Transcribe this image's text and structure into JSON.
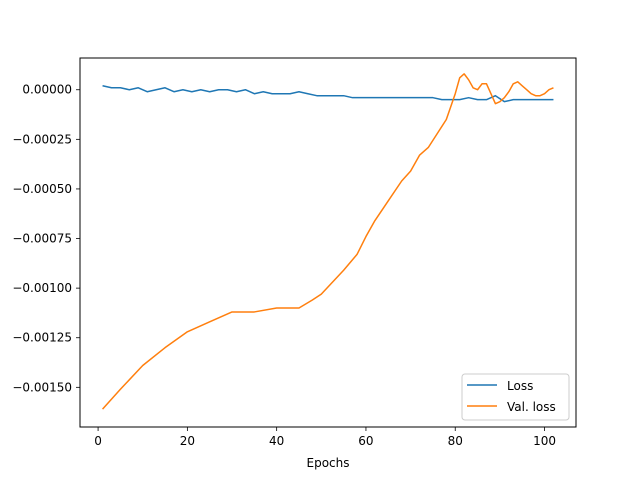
{
  "chart_data": {
    "type": "line",
    "title": "",
    "xlabel": "Epochs",
    "ylabel": "",
    "xlim": [
      -4.05,
      107.05
    ],
    "ylim": [
      -0.0017,
      0.00016
    ],
    "xticks": [
      0,
      20,
      40,
      60,
      80,
      100
    ],
    "yticks": [
      0.0,
      -0.00025,
      -0.0005,
      -0.00075,
      -0.001,
      -0.00125,
      -0.0015
    ],
    "xtick_labels": [
      "0",
      "20",
      "40",
      "60",
      "80",
      "100"
    ],
    "ytick_labels": [
      "0.00000",
      "−0.00025",
      "−0.00050",
      "−0.00075",
      "−0.00100",
      "−0.00125",
      "−0.00150"
    ],
    "grid": false,
    "legend_position": "lower-right",
    "series": [
      {
        "name": "Loss",
        "color": "#1f77b4",
        "x": [
          1,
          3,
          5,
          7,
          9,
          11,
          13,
          15,
          17,
          19,
          21,
          23,
          25,
          27,
          29,
          31,
          33,
          35,
          37,
          39,
          41,
          43,
          45,
          47,
          49,
          51,
          53,
          55,
          57,
          59,
          61,
          63,
          65,
          67,
          69,
          71,
          73,
          75,
          77,
          79,
          81,
          83,
          85,
          87,
          89,
          91,
          93,
          95,
          97,
          99,
          101,
          102
        ],
        "y": [
          2e-05,
          1e-05,
          1e-05,
          0.0,
          1e-05,
          -1e-05,
          0.0,
          1e-05,
          -1e-05,
          0.0,
          -1e-05,
          0.0,
          -1e-05,
          0.0,
          0.0,
          -1e-05,
          0.0,
          -2e-05,
          -1e-05,
          -2e-05,
          -2e-05,
          -2e-05,
          -1e-05,
          -2e-05,
          -3e-05,
          -3e-05,
          -3e-05,
          -3e-05,
          -4e-05,
          -4e-05,
          -4e-05,
          -4e-05,
          -4e-05,
          -4e-05,
          -4e-05,
          -4e-05,
          -4e-05,
          -4e-05,
          -5e-05,
          -5e-05,
          -5e-05,
          -4e-05,
          -5e-05,
          -5e-05,
          -3e-05,
          -6e-05,
          -5e-05,
          -5e-05,
          -5e-05,
          -5e-05,
          -5e-05,
          -5e-05
        ]
      },
      {
        "name": "Val. loss",
        "color": "#ff7f0e",
        "x": [
          1,
          5,
          10,
          15,
          20,
          25,
          30,
          35,
          40,
          45,
          48,
          50,
          55,
          58,
          60,
          62,
          65,
          68,
          70,
          72,
          74,
          76,
          78,
          80,
          81,
          82,
          83,
          84,
          85,
          86,
          87,
          88,
          89,
          90,
          91,
          92,
          93,
          94,
          95,
          96,
          97,
          98,
          99,
          100,
          101,
          102
        ],
        "y": [
          -0.00161,
          -0.00151,
          -0.00139,
          -0.0013,
          -0.00122,
          -0.00117,
          -0.00112,
          -0.00112,
          -0.0011,
          -0.0011,
          -0.00106,
          -0.00103,
          -0.00091,
          -0.00083,
          -0.00074,
          -0.00066,
          -0.00056,
          -0.00046,
          -0.00041,
          -0.00033,
          -0.00029,
          -0.00022,
          -0.00015,
          -2e-05,
          6e-05,
          8e-05,
          5e-05,
          1e-05,
          0.0,
          3e-05,
          3e-05,
          -2e-05,
          -7e-05,
          -6e-05,
          -4e-05,
          -1e-05,
          3e-05,
          4e-05,
          2e-05,
          0.0,
          -2e-05,
          -3e-05,
          -3e-05,
          -2e-05,
          0.0,
          1e-05
        ]
      }
    ]
  }
}
